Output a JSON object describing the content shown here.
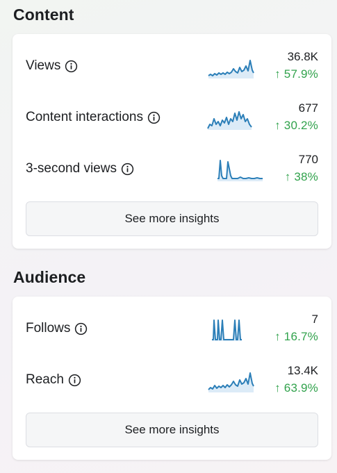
{
  "content": {
    "title": "Content",
    "metrics": [
      {
        "label": "Views",
        "value": "36.8K",
        "change": "↑ 57.9%"
      },
      {
        "label": "Content interactions",
        "value": "677",
        "change": "↑ 30.2%"
      },
      {
        "label": "3-second views",
        "value": "770",
        "change": "↑ 38%"
      }
    ],
    "button_label": "See more insights"
  },
  "audience": {
    "title": "Audience",
    "metrics": [
      {
        "label": "Follows",
        "value": "7",
        "change": "↑ 16.7%"
      },
      {
        "label": "Reach",
        "value": "13.4K",
        "change": "↑ 63.9%"
      }
    ],
    "button_label": "See more insights"
  },
  "colors": {
    "positive_change": "#31a24c",
    "sparkline_stroke": "#2c7fb8",
    "sparkline_fill": "#dcebf7"
  },
  "icons": {
    "info": "info-circle-icon",
    "trend": "arrow-up-icon"
  }
}
